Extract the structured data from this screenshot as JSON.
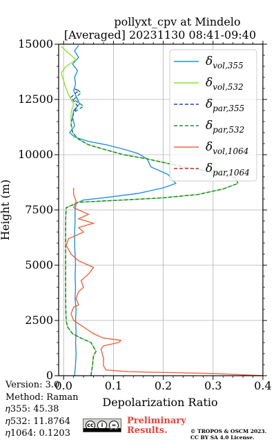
{
  "chart_data": {
    "type": "line",
    "title": "pollyxt_cpv at Mindelo",
    "subtitle": "[Averaged] 20231130 08:41-09:40",
    "xlabel": "Depolarization Ratio",
    "ylabel": "Height (m)",
    "xlim": [
      -0.01,
      0.4
    ],
    "ylim": [
      0,
      15000
    ],
    "xticks": [
      "0.0",
      "0.1",
      "0.2",
      "0.3",
      "0.4"
    ],
    "yticks": [
      "0",
      "2500",
      "5000",
      "7500",
      "10000",
      "12500",
      "15000"
    ],
    "grid": true,
    "legend_position": "top-right",
    "legend_math": [
      {
        "base": "δ",
        "sub": "vol,355"
      },
      {
        "base": "δ",
        "sub": "vol,532"
      },
      {
        "base": "δ",
        "sub": "par,355"
      },
      {
        "base": "δ",
        "sub": "par,532"
      },
      {
        "base": "δ",
        "sub": "vol,1064"
      },
      {
        "base": "δ",
        "sub": "par,1064"
      }
    ],
    "series": [
      {
        "name": "δ vol,355",
        "color": "#1f8fe6",
        "dash": "none",
        "points": [
          [
            0.022,
            0
          ],
          [
            0.024,
            500
          ],
          [
            0.025,
            1000
          ],
          [
            0.024,
            1500
          ],
          [
            0.025,
            2000
          ],
          [
            0.024,
            2500
          ],
          [
            0.025,
            3000
          ],
          [
            0.023,
            3500
          ],
          [
            0.024,
            4000
          ],
          [
            0.023,
            4500
          ],
          [
            0.024,
            5000
          ],
          [
            0.023,
            5500
          ],
          [
            0.022,
            6000
          ],
          [
            0.022,
            6500
          ],
          [
            0.023,
            7000
          ],
          [
            0.023,
            7500
          ],
          [
            0.025,
            7800
          ],
          [
            0.04,
            7950
          ],
          [
            0.08,
            8050
          ],
          [
            0.15,
            8250
          ],
          [
            0.2,
            8500
          ],
          [
            0.225,
            8700
          ],
          [
            0.21,
            9100
          ],
          [
            0.19,
            9300
          ],
          [
            0.175,
            9450
          ],
          [
            0.168,
            9800
          ],
          [
            0.15,
            10050
          ],
          [
            0.12,
            10250
          ],
          [
            0.085,
            10450
          ],
          [
            0.05,
            10600
          ],
          [
            0.022,
            10800
          ],
          [
            0.012,
            11000
          ],
          [
            0.022,
            11300
          ],
          [
            0.018,
            11700
          ],
          [
            0.02,
            12000
          ],
          [
            0.032,
            12300
          ],
          [
            0.026,
            12600
          ],
          [
            0.02,
            12900
          ],
          [
            0.024,
            13200
          ],
          [
            0.022,
            13500
          ],
          [
            0.028,
            13800
          ],
          [
            0.018,
            14100
          ],
          [
            0.03,
            14400
          ],
          [
            0.022,
            14700
          ],
          [
            0.03,
            14950
          ]
        ]
      },
      {
        "name": "δ vol,532",
        "color": "#8ee22a",
        "dash": "none",
        "points": [
          [
            0.055,
            0
          ],
          [
            0.058,
            500
          ],
          [
            0.06,
            900
          ],
          [
            0.065,
            1100
          ],
          [
            0.055,
            1500
          ],
          [
            0.035,
            1700
          ],
          [
            0.018,
            1900
          ],
          [
            0.008,
            2200
          ],
          [
            0.005,
            2500
          ],
          [
            0.004,
            3000
          ],
          [
            0.004,
            3500
          ],
          [
            0.004,
            4000
          ],
          [
            0.004,
            4500
          ],
          [
            0.004,
            5000
          ],
          [
            0.004,
            6000
          ],
          [
            0.004,
            7000
          ],
          [
            0.005,
            7600
          ],
          [
            0.03,
            7850
          ],
          [
            0.12,
            7950
          ],
          [
            0.2,
            8050
          ],
          [
            0.27,
            8200
          ],
          [
            0.32,
            8450
          ],
          [
            0.35,
            8700
          ],
          [
            0.345,
            8950
          ],
          [
            0.3,
            9200
          ],
          [
            0.23,
            9500
          ],
          [
            0.17,
            9800
          ],
          [
            0.12,
            10000
          ],
          [
            0.08,
            10250
          ],
          [
            0.05,
            10450
          ],
          [
            0.03,
            10700
          ],
          [
            0.018,
            11000
          ],
          [
            0.015,
            11400
          ],
          [
            0.015,
            11900
          ],
          [
            0.02,
            12300
          ],
          [
            0.01,
            12700
          ],
          [
            0.005,
            13000
          ],
          [
            -0.005,
            13700
          ],
          [
            0.005,
            14000
          ],
          [
            0.025,
            14300
          ],
          [
            0.01,
            14600
          ],
          [
            -0.005,
            14900
          ]
        ]
      },
      {
        "name": "δ par,355",
        "color": "#1f3cc8",
        "dash": "5,3",
        "points": [
          [
            0.055,
            0
          ],
          [
            0.058,
            500
          ],
          [
            0.06,
            900
          ],
          [
            0.065,
            1100
          ],
          [
            0.055,
            1500
          ],
          [
            0.035,
            1700
          ],
          [
            0.018,
            1900
          ],
          [
            0.008,
            2200
          ],
          [
            0.005,
            2500
          ],
          [
            0.004,
            3500
          ],
          [
            0.004,
            5000
          ],
          [
            0.004,
            7000
          ],
          [
            0.005,
            7600
          ],
          [
            0.03,
            7850
          ],
          [
            0.12,
            7950
          ],
          [
            0.2,
            8050
          ],
          [
            0.27,
            8200
          ],
          [
            0.32,
            8450
          ],
          [
            0.35,
            8700
          ],
          [
            0.345,
            8950
          ],
          [
            0.3,
            9200
          ],
          [
            0.23,
            9500
          ],
          [
            0.17,
            9800
          ],
          [
            0.12,
            10000
          ],
          [
            0.08,
            10250
          ],
          [
            0.05,
            10450
          ],
          [
            0.03,
            10700
          ],
          [
            0.018,
            11000
          ],
          [
            0.015,
            11400
          ],
          [
            0.02,
            11900
          ],
          [
            0.028,
            12200
          ],
          [
            0.015,
            12600
          ],
          [
            0.03,
            12900
          ],
          [
            0.02,
            13000
          ]
        ]
      },
      {
        "name": "δ par,532",
        "color": "#12903a",
        "dash": "5,3",
        "points": [
          [
            0.055,
            0
          ],
          [
            0.058,
            500
          ],
          [
            0.06,
            900
          ],
          [
            0.065,
            1100
          ],
          [
            0.055,
            1500
          ],
          [
            0.035,
            1700
          ],
          [
            0.018,
            1900
          ],
          [
            0.008,
            2200
          ],
          [
            0.005,
            2500
          ],
          [
            0.004,
            3500
          ],
          [
            0.004,
            5000
          ],
          [
            0.004,
            7000
          ],
          [
            0.005,
            7600
          ],
          [
            0.03,
            7850
          ],
          [
            0.12,
            7950
          ],
          [
            0.2,
            8050
          ],
          [
            0.27,
            8200
          ],
          [
            0.32,
            8450
          ],
          [
            0.35,
            8700
          ],
          [
            0.345,
            8950
          ],
          [
            0.3,
            9200
          ],
          [
            0.23,
            9500
          ],
          [
            0.17,
            9800
          ],
          [
            0.12,
            10000
          ],
          [
            0.08,
            10250
          ],
          [
            0.05,
            10450
          ],
          [
            0.03,
            10700
          ],
          [
            0.018,
            11000
          ],
          [
            0.015,
            11400
          ],
          [
            0.02,
            11900
          ],
          [
            0.04,
            12200
          ],
          [
            0.02,
            12500
          ],
          [
            0.035,
            12800
          ],
          [
            0.025,
            13000
          ]
        ]
      },
      {
        "name": "δ vol,1064",
        "color": "#f0643c",
        "dash": "none",
        "points": [
          [
            0.4,
            0
          ],
          [
            0.3,
            100
          ],
          [
            0.13,
            180
          ],
          [
            0.085,
            260
          ],
          [
            0.08,
            450
          ],
          [
            0.08,
            800
          ],
          [
            0.075,
            1200
          ],
          [
            0.08,
            1350
          ],
          [
            0.11,
            1500
          ],
          [
            0.115,
            1600
          ],
          [
            0.08,
            1700
          ],
          [
            0.06,
            1900
          ],
          [
            0.04,
            2200
          ],
          [
            0.02,
            2500
          ],
          [
            0.015,
            2800
          ],
          [
            0.02,
            3100
          ],
          [
            0.03,
            3200
          ],
          [
            0.025,
            3500
          ],
          [
            0.03,
            3800
          ],
          [
            0.04,
            4000
          ],
          [
            0.035,
            4300
          ],
          [
            0.05,
            4600
          ],
          [
            0.06,
            4900
          ],
          [
            0.03,
            5200
          ],
          [
            0.015,
            5500
          ],
          [
            0.005,
            5900
          ],
          [
            0.01,
            6200
          ],
          [
            0.04,
            6500
          ],
          [
            0.03,
            6700
          ],
          [
            0.06,
            6900
          ],
          [
            0.03,
            7100
          ],
          [
            0.05,
            7300
          ],
          [
            0.02,
            7600
          ],
          [
            0.025,
            7900
          ],
          [
            0.02,
            8200
          ],
          [
            0.02,
            8500
          ]
        ]
      },
      {
        "name": "δ par,1064",
        "color": "#c8282a",
        "dash": "5,3",
        "points": []
      }
    ]
  },
  "footer": {
    "version": "Version: 3.0",
    "method": "Method: Raman",
    "eta355": "𝜂355:  45.38",
    "eta532": "𝜂532: 11.8764",
    "eta1064": "𝜂1064: 0.1203",
    "cc_glyphs": [
      "cc",
      "i",
      "=",
      "$"
    ],
    "cc_text": "BY SA",
    "preliminary_1": "Preliminary",
    "preliminary_2": "Results.",
    "copyright_1": "© TROPOS & OSCM 2023.",
    "copyright_2": "CC BY SA 4.0 License.",
    "preliminary_color": "#ef4036"
  }
}
